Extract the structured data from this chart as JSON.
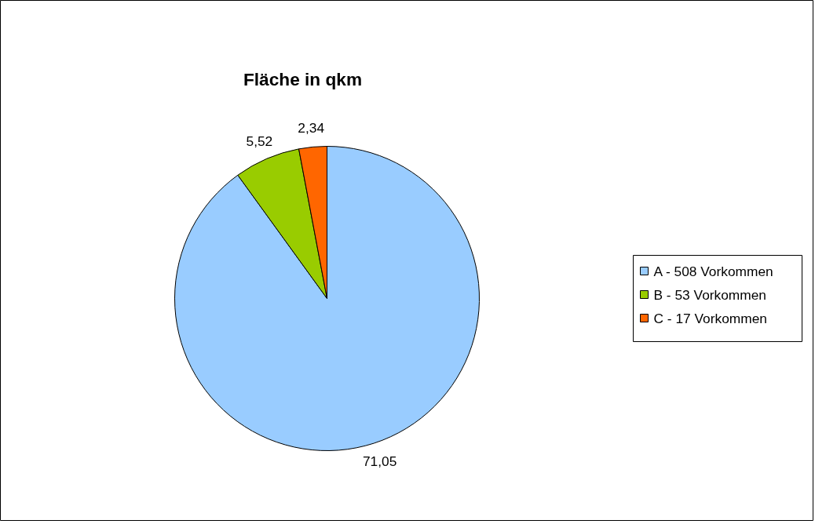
{
  "chart_data": {
    "type": "pie",
    "title": "Fläche in qkm",
    "categories": [
      "A - 508 Vorkommen",
      "B - 53 Vorkommen",
      "C - 17 Vorkommen"
    ],
    "values": [
      71.05,
      5.52,
      2.34
    ],
    "value_labels": [
      "71,05",
      "5,52",
      "2,34"
    ],
    "colors": [
      "#99ccff",
      "#99cc00",
      "#ff6600"
    ],
    "legend": "right"
  }
}
